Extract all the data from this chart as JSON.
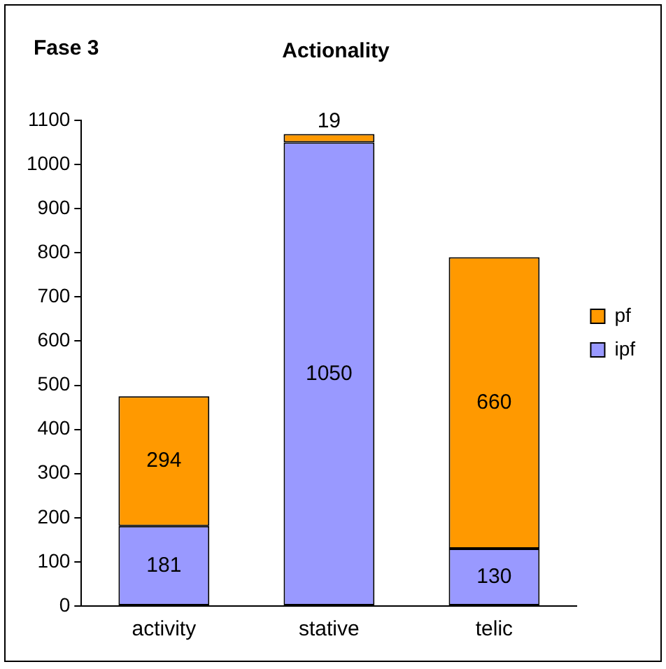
{
  "chart_data": {
    "type": "bar",
    "title": "Actionality",
    "annotations": [
      "Fase 3"
    ],
    "categories": [
      "activity",
      "stative",
      "telic"
    ],
    "series": [
      {
        "name": "ipf",
        "color": "#9999ff",
        "values": [
          181,
          1050,
          130
        ]
      },
      {
        "name": "pf",
        "color": "#ff9900",
        "values": [
          294,
          19,
          660
        ]
      }
    ],
    "stacked": true,
    "ylim": [
      0,
      1100
    ],
    "yticks": [
      0,
      100,
      200,
      300,
      400,
      500,
      600,
      700,
      800,
      900,
      1000,
      1100
    ],
    "data_labels": true,
    "legend": "right",
    "grid": false
  }
}
